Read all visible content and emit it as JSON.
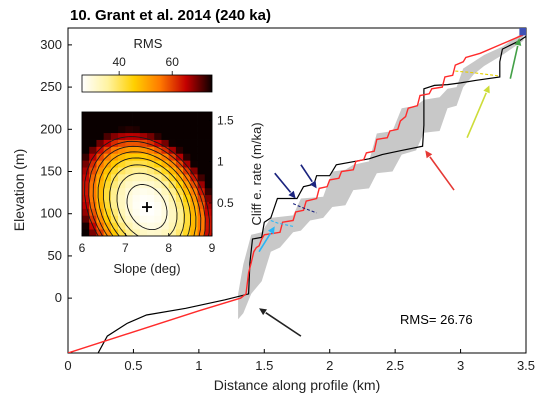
{
  "chart_data": {
    "title": "10. Grant et al. 2014 (240 ka)",
    "main": {
      "type": "line",
      "xlabel": "Distance along profile (km)",
      "ylabel": "Elevation (m)",
      "xlim": [
        0,
        3.5
      ],
      "ylim": [
        -65,
        320
      ],
      "xticks": [
        "0",
        "0.5",
        "1",
        "1.5",
        "2",
        "2.5",
        "3",
        "3.5"
      ],
      "yticks": [
        "0",
        "50",
        "100",
        "150",
        "200",
        "250",
        "300"
      ],
      "rms_label": "RMS= 26.76",
      "series": [
        {
          "role": "uncertainty band",
          "color": "#c8c8c8",
          "upper": [
            [
              1.3,
              5
            ],
            [
              1.34,
              40
            ],
            [
              1.4,
              75
            ],
            [
              1.48,
              78
            ],
            [
              1.55,
              95
            ],
            [
              1.72,
              98
            ],
            [
              1.78,
              118
            ],
            [
              1.95,
              120
            ],
            [
              2.02,
              150
            ],
            [
              2.12,
              152
            ],
            [
              2.18,
              158
            ],
            [
              2.3,
              162
            ],
            [
              2.36,
              195
            ],
            [
              2.48,
              198
            ],
            [
              2.55,
              225
            ],
            [
              2.66,
              228
            ],
            [
              2.72,
              235
            ],
            [
              2.84,
              238
            ],
            [
              2.9,
              248
            ],
            [
              2.97,
              250
            ],
            [
              3.02,
              272
            ],
            [
              3.1,
              280
            ],
            [
              3.18,
              288
            ],
            [
              3.32,
              298
            ],
            [
              3.48,
              315
            ]
          ],
          "lower": [
            [
              3.48,
              305
            ],
            [
              3.32,
              288
            ],
            [
              3.18,
              275
            ],
            [
              3.1,
              265
            ],
            [
              3.02,
              250
            ],
            [
              2.97,
              228
            ],
            [
              2.9,
              225
            ],
            [
              2.84,
              198
            ],
            [
              2.72,
              196
            ],
            [
              2.66,
              175
            ],
            [
              2.55,
              170
            ],
            [
              2.48,
              150
            ],
            [
              2.36,
              148
            ],
            [
              2.3,
              130
            ],
            [
              2.18,
              128
            ],
            [
              2.12,
              110
            ],
            [
              2.02,
              108
            ],
            [
              1.95,
              95
            ],
            [
              1.85,
              92
            ],
            [
              1.78,
              80
            ],
            [
              1.72,
              78
            ],
            [
              1.62,
              60
            ],
            [
              1.55,
              55
            ],
            [
              1.48,
              20
            ],
            [
              1.4,
              5
            ],
            [
              1.34,
              -18
            ],
            [
              1.3,
              -25
            ]
          ]
        },
        {
          "role": "observed profile",
          "color": "#000000",
          "points": [
            [
              0.23,
              -65
            ],
            [
              0.3,
              -45
            ],
            [
              0.45,
              -30
            ],
            [
              0.6,
              -20
            ],
            [
              0.9,
              -12
            ],
            [
              1.2,
              -2
            ],
            [
              1.38,
              5
            ],
            [
              1.39,
              42
            ],
            [
              1.41,
              70
            ],
            [
              1.48,
              72
            ],
            [
              1.5,
              90
            ],
            [
              1.55,
              95
            ],
            [
              1.6,
              118
            ],
            [
              1.75,
              118
            ],
            [
              1.8,
              132
            ],
            [
              1.88,
              135
            ],
            [
              1.9,
              145
            ],
            [
              2.0,
              145
            ],
            [
              2.05,
              158
            ],
            [
              2.3,
              165
            ],
            [
              2.4,
              170
            ],
            [
              2.55,
              175
            ],
            [
              2.71,
              180
            ],
            [
              2.72,
              205
            ],
            [
              2.72,
              248
            ],
            [
              2.8,
              252
            ],
            [
              2.9,
              253
            ],
            [
              3.0,
              255
            ],
            [
              3.12,
              258
            ],
            [
              3.3,
              262
            ],
            [
              3.3,
              280
            ],
            [
              3.32,
              295
            ],
            [
              3.45,
              305
            ],
            [
              3.5,
              310
            ]
          ]
        },
        {
          "role": "model fit",
          "color": "#ff2b2b",
          "points": [
            [
              0,
              -65
            ],
            [
              0.5,
              -40
            ],
            [
              1.0,
              -15
            ],
            [
              1.32,
              0
            ],
            [
              1.36,
              5
            ],
            [
              1.38,
              30
            ],
            [
              1.4,
              42
            ],
            [
              1.42,
              55
            ],
            [
              1.44,
              60
            ],
            [
              1.46,
              62
            ],
            [
              1.48,
              70
            ],
            [
              1.5,
              75
            ],
            [
              1.62,
              78
            ],
            [
              1.64,
              90
            ],
            [
              1.72,
              92
            ],
            [
              1.74,
              102
            ],
            [
              1.8,
              104
            ],
            [
              1.82,
              115
            ],
            [
              1.9,
              118
            ],
            [
              1.92,
              130
            ],
            [
              1.98,
              132
            ],
            [
              2.0,
              140
            ],
            [
              2.07,
              142
            ],
            [
              2.09,
              150
            ],
            [
              2.18,
              152
            ],
            [
              2.2,
              162
            ],
            [
              2.26,
              164
            ],
            [
              2.28,
              172
            ],
            [
              2.34,
              174
            ],
            [
              2.36,
              188
            ],
            [
              2.44,
              190
            ],
            [
              2.46,
              198
            ],
            [
              2.52,
              200
            ],
            [
              2.54,
              210
            ],
            [
              2.58,
              215
            ],
            [
              2.6,
              225
            ],
            [
              2.67,
              228
            ],
            [
              2.69,
              240
            ],
            [
              2.76,
              242
            ],
            [
              2.78,
              248
            ],
            [
              2.86,
              250
            ],
            [
              2.88,
              262
            ],
            [
              2.94,
              264
            ],
            [
              2.96,
              276
            ],
            [
              3.02,
              280
            ],
            [
              3.04,
              285
            ],
            [
              3.15,
              290
            ],
            [
              3.3,
              300
            ],
            [
              3.48,
              312
            ]
          ]
        }
      ],
      "dashed_segments": [
        {
          "color": "#1a237e",
          "points": [
            [
              1.72,
              112
            ],
            [
              1.78,
              108
            ],
            [
              1.9,
              101
            ]
          ]
        },
        {
          "color": "#29b6f6",
          "points": [
            [
              1.55,
              92
            ],
            [
              1.6,
              89
            ],
            [
              1.72,
              85
            ]
          ]
        },
        {
          "color": "#e6d000",
          "points": [
            [
              2.96,
              269
            ],
            [
              3.1,
              267
            ],
            [
              3.3,
              263
            ]
          ]
        }
      ],
      "arrows": [
        {
          "color": "#1a237e",
          "from": [
            1.58,
            148
          ],
          "to": [
            1.74,
            118
          ]
        },
        {
          "color": "#1a237e",
          "from": [
            1.78,
            158
          ],
          "to": [
            1.9,
            130
          ]
        },
        {
          "color": "#29b6f6",
          "from": [
            1.46,
            55
          ],
          "to": [
            1.58,
            85
          ]
        },
        {
          "color": "#e53935",
          "from": [
            2.95,
            128
          ],
          "to": [
            2.73,
            175
          ]
        },
        {
          "color": "#cddc39",
          "from": [
            3.05,
            190
          ],
          "to": [
            3.22,
            252
          ]
        },
        {
          "color": "#43a047",
          "from": [
            3.38,
            260
          ],
          "to": [
            3.45,
            308
          ]
        },
        {
          "color": "#222222",
          "from": [
            1.78,
            -45
          ],
          "to": [
            1.46,
            -12
          ]
        }
      ],
      "endpoint_marker": {
        "color": "#3f51b5",
        "x": 3.48,
        "y": 316
      }
    },
    "inset": {
      "type": "heatmap",
      "colorbar_label": "RMS",
      "colorbar_ticks": [
        "40",
        "60"
      ],
      "colorbar_range": [
        26,
        75
      ],
      "xlabel": "Slope (deg)",
      "ylabel": "Cliff e. rate (m/ka)",
      "xlim": [
        6,
        9
      ],
      "ylim": [
        0.1,
        1.6
      ],
      "xticks": [
        "6",
        "7",
        "8",
        "9"
      ],
      "yticks": [
        "0.5",
        "1",
        "1.5"
      ],
      "best_fit": {
        "slope": 7.5,
        "rate": 0.45
      },
      "contour_levels": [
        30,
        35,
        40,
        45,
        50,
        55,
        60,
        65
      ]
    }
  }
}
